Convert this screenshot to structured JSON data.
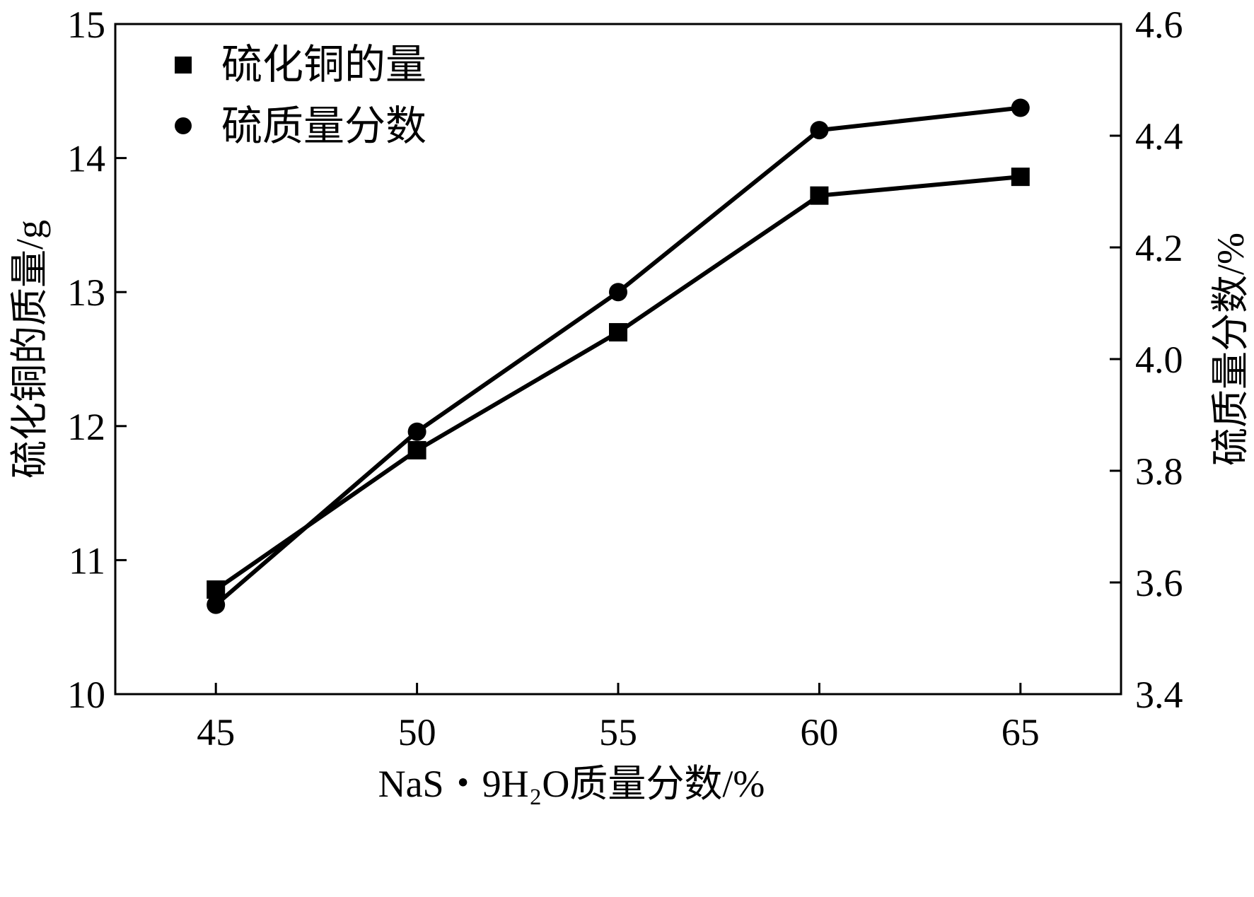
{
  "chart_data": {
    "type": "line",
    "xlabel": "NaS・9H₂O质量分数/%",
    "ylabel_left": "硫化铜的质量/g",
    "ylabel_right": "硫质量分数/%",
    "x": [
      45,
      50,
      55,
      60,
      65
    ],
    "xticks": [
      "45",
      "50",
      "55",
      "60",
      "65"
    ],
    "xlim": [
      42.5,
      67.5
    ],
    "ylim_left": [
      10,
      15
    ],
    "yticks_left": [
      "10",
      "11",
      "12",
      "13",
      "14",
      "15"
    ],
    "ylim_right": [
      3.4,
      4.6
    ],
    "yticks_right": [
      "3.4",
      "3.6",
      "3.8",
      "4.0",
      "4.2",
      "4.4",
      "4.6"
    ],
    "grid": false,
    "legend_position": "top-left",
    "series": [
      {
        "name": "硫化铜的量",
        "marker": "square",
        "axis": "left",
        "values": [
          10.78,
          11.82,
          12.7,
          13.72,
          13.86
        ]
      },
      {
        "name": "硫质量分数",
        "marker": "circle",
        "axis": "right",
        "values": [
          3.56,
          3.87,
          4.12,
          4.41,
          4.45
        ]
      }
    ],
    "colors": {
      "line": "#000000",
      "axis": "#000000"
    }
  }
}
